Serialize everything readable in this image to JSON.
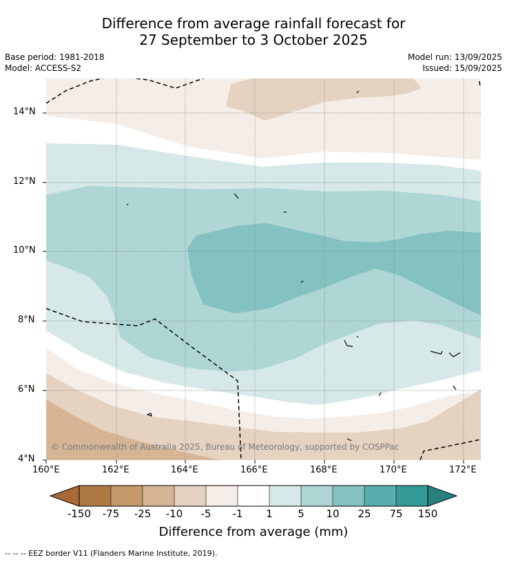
{
  "title_line1": "Difference from average rainfall forecast for",
  "title_line2": "27 September to 3 October 2025",
  "base_period": "Base period: 1981-2018",
  "model": "Model: ACCESS-S2",
  "model_run": "Model run: 13/09/2025",
  "issued": "Issued: 15/09/2025",
  "copyright": "© Commonwealth of Australia 2025, Bureau of Meteorology, supported by COSPPac",
  "map": {
    "lon_range": [
      160,
      172.5
    ],
    "lat_range": [
      4,
      15
    ],
    "lon_ticks": [
      "160°E",
      "162°E",
      "164°E",
      "166°E",
      "168°E",
      "170°E",
      "172°E"
    ],
    "lat_ticks": [
      "4°N",
      "6°N",
      "8°N",
      "10°N",
      "12°N",
      "14°N"
    ]
  },
  "colorbar": {
    "title": "Difference from average (mm)",
    "tick_labels": [
      "-150",
      "-75",
      "-25",
      "-10",
      "-5",
      "-1",
      "1",
      "5",
      "10",
      "25",
      "75",
      "150"
    ],
    "colors": [
      "#a96a35",
      "#af7944",
      "#c4986a",
      "#d6b595",
      "#e5d2c1",
      "#f4ede8",
      "#ffffff",
      "#d6e8e7",
      "#aed6d5",
      "#84c1c1",
      "#5aadad",
      "#359998",
      "#2a7f7f"
    ]
  },
  "footnote": "--  --  -- EEZ border V11 (Flanders Marine Institute, 2019)."
}
